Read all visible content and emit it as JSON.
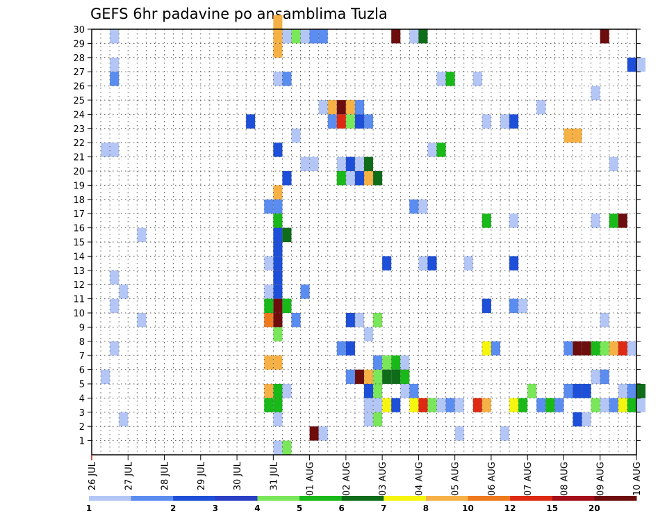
{
  "chart_data": {
    "type": "heatmap",
    "title": "GEFS 6hr padavine po ansamblima Tuzla",
    "xlabel": "",
    "ylabel": "",
    "x_ticks": [
      "26 JUL",
      "27 JUL",
      "28 JUL",
      "29 JUL",
      "30 JUL",
      "31 JUL",
      "01 AUG",
      "02 AUG",
      "03 AUG",
      "04 AUG",
      "05 AUG",
      "06 AUG",
      "07 AUG",
      "08 AUG",
      "09 AUG",
      "10 AUG"
    ],
    "y_ticks": [
      "1",
      "2",
      "3",
      "4",
      "5",
      "6",
      "7",
      "8",
      "9",
      "10",
      "11",
      "12",
      "13",
      "14",
      "15",
      "16",
      "17",
      "18",
      "19",
      "20",
      "21",
      "22",
      "23",
      "24",
      "25",
      "26",
      "27",
      "28",
      "29",
      "30"
    ],
    "grid": true,
    "colorbar": {
      "levels": [
        "1",
        "2",
        "3",
        "4",
        "5",
        "6",
        "7",
        "8",
        "10",
        "12",
        "15",
        "20"
      ],
      "colors": [
        "#b3c6f5",
        "#5b8cef",
        "#1d4fd8",
        "#2a3fc4",
        "#7ae65a",
        "#19b91a",
        "#0f6d1a",
        "#f5f50f",
        "#f5b146",
        "#ef7a1d",
        "#de2a12",
        "#a4101a",
        "#6e0d0d"
      ]
    },
    "cells": [
      [
        1,
        29,
        1
      ],
      [
        1,
        27,
        1
      ],
      [
        1,
        26,
        2
      ],
      [
        1,
        21,
        1
      ],
      [
        0.5,
        21,
        1
      ],
      [
        1,
        12,
        1
      ],
      [
        1,
        10,
        1
      ],
      [
        1,
        7,
        1
      ],
      [
        0.5,
        5,
        1
      ],
      [
        1.5,
        11,
        1
      ],
      [
        1.5,
        2,
        1
      ],
      [
        2.5,
        15,
        1
      ],
      [
        2.5,
        9,
        1
      ],
      [
        8.5,
        23,
        3
      ],
      [
        10,
        30,
        10
      ],
      [
        10,
        29,
        10
      ],
      [
        10,
        28,
        10
      ],
      [
        10,
        26,
        1
      ],
      [
        10,
        21,
        3
      ],
      [
        10,
        18,
        10
      ],
      [
        10,
        17,
        2
      ],
      [
        9.5,
        17,
        2
      ],
      [
        10,
        16,
        6
      ],
      [
        10,
        15,
        3
      ],
      [
        10,
        14,
        3
      ],
      [
        10,
        13,
        3
      ],
      [
        9.5,
        13,
        1
      ],
      [
        10,
        12,
        3
      ],
      [
        10,
        11,
        3
      ],
      [
        9.5,
        11,
        1
      ],
      [
        10,
        10,
        20
      ],
      [
        9.5,
        10,
        6
      ],
      [
        10,
        9,
        20
      ],
      [
        9.5,
        9,
        12
      ],
      [
        10,
        8,
        5
      ],
      [
        10,
        6,
        10
      ],
      [
        9.5,
        6,
        10
      ],
      [
        10,
        4,
        6
      ],
      [
        9.5,
        4,
        10
      ],
      [
        10,
        3,
        6
      ],
      [
        9.5,
        3,
        6
      ],
      [
        10,
        2,
        1
      ],
      [
        10,
        0,
        1
      ],
      [
        10.5,
        29,
        1
      ],
      [
        10.5,
        26,
        2
      ],
      [
        10.5,
        19,
        3
      ],
      [
        10.5,
        15,
        7
      ],
      [
        10.5,
        10,
        6
      ],
      [
        10.5,
        4,
        1
      ],
      [
        10.5,
        0,
        5
      ],
      [
        11,
        29,
        5
      ],
      [
        11,
        22,
        1
      ],
      [
        11,
        9,
        2
      ],
      [
        11.5,
        29,
        1
      ],
      [
        11.5,
        20,
        1
      ],
      [
        11.5,
        11,
        2
      ],
      [
        12,
        29,
        2
      ],
      [
        12,
        20,
        1
      ],
      [
        12,
        1,
        20
      ],
      [
        12.5,
        29,
        2
      ],
      [
        12.5,
        24,
        1
      ],
      [
        12.5,
        1,
        1
      ],
      [
        13,
        24,
        10
      ],
      [
        13,
        23,
        2
      ],
      [
        13.5,
        24,
        20
      ],
      [
        13.5,
        23,
        15
      ],
      [
        13.5,
        20,
        1
      ],
      [
        13.5,
        19,
        6
      ],
      [
        13.5,
        7,
        2
      ],
      [
        14,
        24,
        10
      ],
      [
        14,
        23,
        5
      ],
      [
        14,
        20,
        3
      ],
      [
        14,
        19,
        1
      ],
      [
        14,
        9,
        3
      ],
      [
        14,
        7,
        3
      ],
      [
        14,
        5,
        2
      ],
      [
        14.5,
        24,
        2
      ],
      [
        14.5,
        23,
        3
      ],
      [
        14.5,
        20,
        1
      ],
      [
        14.5,
        19,
        3
      ],
      [
        14.5,
        9,
        1
      ],
      [
        14.5,
        5,
        20
      ],
      [
        15,
        23,
        2
      ],
      [
        15,
        20,
        7
      ],
      [
        15,
        19,
        10
      ],
      [
        15,
        8,
        1
      ],
      [
        15,
        5,
        10
      ],
      [
        15,
        4,
        3
      ],
      [
        15,
        3,
        1
      ],
      [
        15,
        2,
        1
      ],
      [
        15.5,
        19,
        7
      ],
      [
        15.5,
        9,
        5
      ],
      [
        15.5,
        6,
        2
      ],
      [
        15.5,
        5,
        5
      ],
      [
        15.5,
        4,
        5
      ],
      [
        15.5,
        3,
        1
      ],
      [
        15.5,
        2,
        5
      ],
      [
        16,
        13,
        3
      ],
      [
        16,
        6,
        5
      ],
      [
        16,
        5,
        7
      ],
      [
        16,
        3,
        8
      ],
      [
        16.5,
        29,
        20
      ],
      [
        16.5,
        6,
        6
      ],
      [
        16.5,
        5,
        7
      ],
      [
        16.5,
        3,
        3
      ],
      [
        17,
        6,
        1
      ],
      [
        17,
        5,
        6
      ],
      [
        17,
        4,
        1
      ],
      [
        17.5,
        29,
        1
      ],
      [
        17.5,
        17,
        2
      ],
      [
        17.5,
        4,
        2
      ],
      [
        17.5,
        3,
        8
      ],
      [
        18,
        29,
        7
      ],
      [
        18,
        17,
        1
      ],
      [
        18,
        13,
        1
      ],
      [
        18,
        3,
        15
      ],
      [
        18.5,
        21,
        1
      ],
      [
        18.5,
        13,
        3
      ],
      [
        18.5,
        3,
        5
      ],
      [
        19,
        26,
        1
      ],
      [
        19,
        21,
        6
      ],
      [
        19,
        3,
        1
      ],
      [
        19.5,
        26,
        6
      ],
      [
        19.5,
        3,
        2
      ],
      [
        20,
        3,
        1
      ],
      [
        20,
        1,
        1
      ],
      [
        20.5,
        13,
        1
      ],
      [
        21,
        26,
        1
      ],
      [
        21,
        3,
        15
      ],
      [
        21.5,
        23,
        1
      ],
      [
        21.5,
        16,
        6
      ],
      [
        21.5,
        10,
        3
      ],
      [
        21.5,
        7,
        8
      ],
      [
        21.5,
        3,
        10
      ],
      [
        22,
        7,
        2
      ],
      [
        22.5,
        23,
        1
      ],
      [
        22.5,
        1,
        1
      ],
      [
        23,
        23,
        3
      ],
      [
        23,
        16,
        1
      ],
      [
        23,
        13,
        3
      ],
      [
        23,
        10,
        2
      ],
      [
        23,
        3,
        8
      ],
      [
        23.5,
        10,
        1
      ],
      [
        23.5,
        3,
        6
      ],
      [
        24,
        4,
        5
      ],
      [
        24.5,
        24,
        1
      ],
      [
        24.5,
        3,
        2
      ],
      [
        25,
        3,
        6
      ],
      [
        25.5,
        3,
        2
      ],
      [
        26,
        22,
        10
      ],
      [
        26,
        7,
        2
      ],
      [
        26,
        4,
        2
      ],
      [
        26.5,
        22,
        10
      ],
      [
        26.5,
        7,
        20
      ],
      [
        26.5,
        4,
        3
      ],
      [
        26.5,
        2,
        3
      ],
      [
        27,
        7,
        20
      ],
      [
        27,
        4,
        3
      ],
      [
        27,
        2,
        1
      ],
      [
        27.5,
        25,
        1
      ],
      [
        27.5,
        16,
        1
      ],
      [
        27.5,
        7,
        6
      ],
      [
        27.5,
        5,
        1
      ],
      [
        27.5,
        3,
        5
      ],
      [
        28,
        29,
        20
      ],
      [
        28,
        9,
        1
      ],
      [
        28,
        7,
        5
      ],
      [
        28,
        5,
        2
      ],
      [
        28,
        3,
        1
      ],
      [
        28.5,
        20,
        1
      ],
      [
        28.5,
        16,
        6
      ],
      [
        28.5,
        7,
        10
      ],
      [
        28.5,
        3,
        2
      ],
      [
        29,
        16,
        20
      ],
      [
        29,
        7,
        15
      ],
      [
        29,
        4,
        1
      ],
      [
        29,
        3,
        8
      ],
      [
        29.5,
        27,
        3
      ],
      [
        29.5,
        7,
        1
      ],
      [
        29.5,
        4,
        2
      ],
      [
        29.5,
        3,
        6
      ],
      [
        30,
        27,
        1
      ],
      [
        30,
        4,
        7
      ],
      [
        30,
        3,
        1
      ]
    ]
  }
}
